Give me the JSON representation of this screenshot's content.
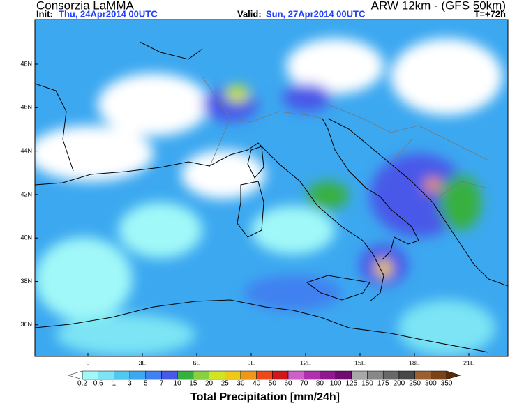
{
  "header": {
    "left_title": "Consorzia LaMMA",
    "right_title": "ARW 12km - (GFS 50km)",
    "init_label": "Init:",
    "init_value": "Thu, 24Apr2014 00UTC",
    "valid_label": "Valid:",
    "valid_value": "Sun, 27Apr2014 00UTC",
    "lead_time": "T=+72h"
  },
  "map": {
    "lat_labels": [
      "48N",
      "46N",
      "44N",
      "42N",
      "40N",
      "38N",
      "36N"
    ],
    "lon_labels": [
      "0",
      "3E",
      "6E",
      "9E",
      "12E",
      "15E",
      "18E",
      "21E"
    ]
  },
  "colorbar": {
    "title": "Total Precipitation [mm/24h]",
    "labels": [
      "0.2",
      "0.6",
      "1",
      "3",
      "5",
      "7",
      "10",
      "15",
      "20",
      "25",
      "30",
      "40",
      "50",
      "60",
      "70",
      "80",
      "100",
      "125",
      "150",
      "175",
      "200",
      "250",
      "300",
      "350"
    ],
    "under_color": "#ffffff",
    "colors": [
      "#a0f8f8",
      "#7ce4f4",
      "#50c8f0",
      "#3ca8f0",
      "#4080f0",
      "#4858e8",
      "#38b040",
      "#88d040",
      "#d0e420",
      "#f0c818",
      "#f09618",
      "#f04818",
      "#d01818",
      "#d060c8",
      "#b030b0",
      "#901890",
      "#700c70",
      "#a8a8a8",
      "#888888",
      "#686868",
      "#484848",
      "#9a6030",
      "#7a4418"
    ],
    "over_color": "#5a2a0a"
  }
}
